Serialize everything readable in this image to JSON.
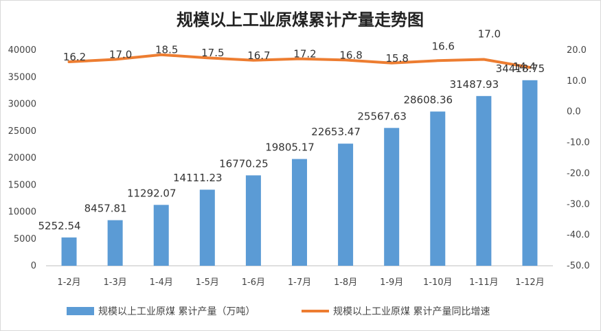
{
  "chart_data": {
    "type": "bar",
    "title": "规模以上工业原煤累计产量走势图",
    "categories": [
      "1-2月",
      "1-3月",
      "1-4月",
      "1-5月",
      "1-6月",
      "1-7月",
      "1-8月",
      "1-9月",
      "1-10月",
      "1-11月",
      "1-12月"
    ],
    "series": [
      {
        "name": "规模以上工业原煤 累计产量（万吨）",
        "type": "bar",
        "axis": "left",
        "color": "#5b9bd5",
        "values": [
          5252.54,
          8457.81,
          11292.07,
          14111.23,
          16770.25,
          19805.17,
          22653.47,
          25567.63,
          28608.36,
          31487.93,
          34418.75
        ],
        "labels": [
          "5252.54",
          "8457.81",
          "11292.07",
          "14111.23",
          "16770.25",
          "19805.17",
          "22653.47",
          "25567.63",
          "28608.36",
          "31487.93",
          "34418.75"
        ]
      },
      {
        "name": "规模以上工业原煤 累计产量同比增速",
        "type": "line",
        "axis": "right",
        "color": "#ed7d31",
        "values": [
          16.2,
          17.0,
          18.5,
          17.5,
          16.7,
          17.2,
          16.8,
          15.8,
          16.6,
          17.0,
          14.4
        ],
        "labels": [
          "16.2",
          "17.0",
          "18.5",
          "17.5",
          "16.7",
          "17.2",
          "16.8",
          "15.8",
          "16.6",
          "17.0",
          "14.4"
        ]
      }
    ],
    "y_left": {
      "range": [
        0,
        40000
      ],
      "ticks": [
        "0",
        "5000",
        "10000",
        "15000",
        "20000",
        "25000",
        "30000",
        "35000",
        "40000"
      ]
    },
    "y_right": {
      "range": [
        -50,
        20
      ],
      "ticks": [
        "-50.0",
        "-40.0",
        "-30.0",
        "-20.0",
        "-10.0",
        "0.0",
        "10.0",
        "20.0"
      ]
    },
    "grid": false,
    "legend_position": "bottom"
  }
}
